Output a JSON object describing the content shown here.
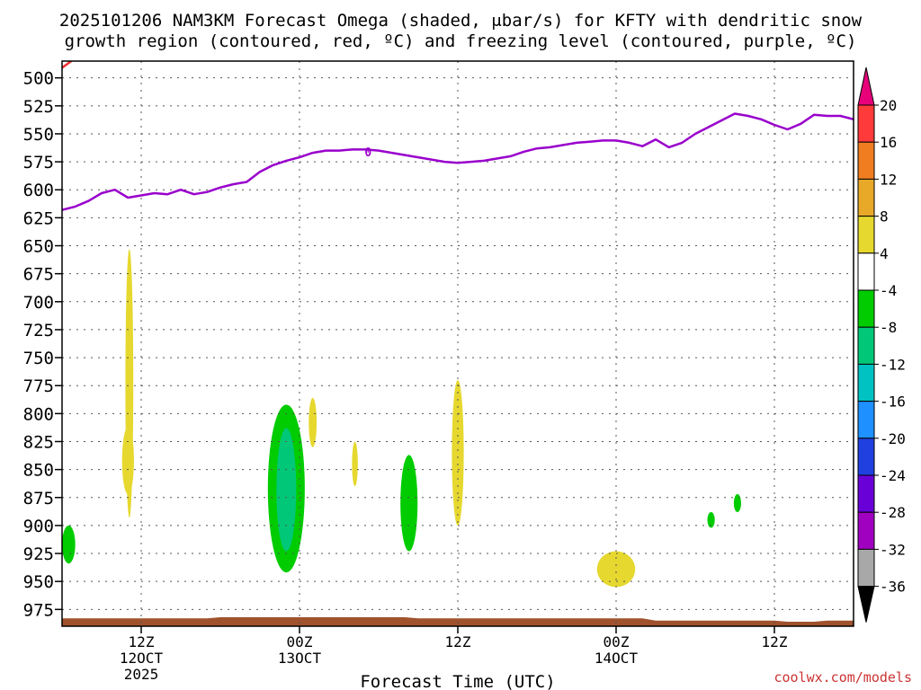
{
  "chart_data": {
    "type": "heatmap",
    "title_line1": "2025101206 NAM3KM Forecast Omega (shaded, μbar/s) for KFTY with dendritic snow",
    "title_line2": "growth region (contoured, red, ºC) and freezing level (contoured, purple, ºC)",
    "xlabel": "Forecast Time (UTC)",
    "ylabel": "",
    "watermark": "coolwx.com/models",
    "x_unit": "forecast_hours_from_2025101206",
    "xlim": [
      0,
      60
    ],
    "ylim": [
      990,
      485
    ],
    "y_ticks": [
      500,
      525,
      550,
      575,
      600,
      625,
      650,
      675,
      700,
      725,
      750,
      775,
      800,
      825,
      850,
      875,
      900,
      925,
      950,
      975
    ],
    "x_ticks": [
      {
        "x": 6,
        "lines": [
          "12Z",
          "12OCT",
          "2025"
        ]
      },
      {
        "x": 18,
        "lines": [
          "00Z",
          "13OCT"
        ]
      },
      {
        "x": 30,
        "lines": [
          "12Z"
        ]
      },
      {
        "x": 42,
        "lines": [
          "00Z",
          "14OCT"
        ]
      },
      {
        "x": 54,
        "lines": [
          "12Z"
        ]
      }
    ],
    "x_gridlines": [
      6,
      18,
      30,
      42,
      54
    ],
    "grid": true,
    "freezing_level": {
      "color": "#9900cc",
      "label": "0",
      "label_at": [
        23.2,
        566
      ],
      "points": [
        [
          0,
          618
        ],
        [
          1,
          615
        ],
        [
          2,
          610
        ],
        [
          3,
          603
        ],
        [
          4,
          600
        ],
        [
          5,
          607
        ],
        [
          6,
          605
        ],
        [
          7,
          603
        ],
        [
          8,
          604
        ],
        [
          9,
          600
        ],
        [
          10,
          604
        ],
        [
          11,
          602
        ],
        [
          12,
          598
        ],
        [
          13,
          595
        ],
        [
          14,
          593
        ],
        [
          15,
          584
        ],
        [
          16,
          578
        ],
        [
          17,
          574
        ],
        [
          18,
          571
        ],
        [
          19,
          567
        ],
        [
          20,
          565
        ],
        [
          21,
          565
        ],
        [
          22,
          564
        ],
        [
          23,
          564
        ],
        [
          24,
          565
        ],
        [
          25,
          567
        ],
        [
          26,
          569
        ],
        [
          27,
          571
        ],
        [
          28,
          573
        ],
        [
          29,
          575
        ],
        [
          30,
          576
        ],
        [
          31,
          575
        ],
        [
          32,
          574
        ],
        [
          33,
          572
        ],
        [
          34,
          570
        ],
        [
          35,
          566
        ],
        [
          36,
          563
        ],
        [
          37,
          562
        ],
        [
          38,
          560
        ],
        [
          39,
          558
        ],
        [
          40,
          557
        ],
        [
          41,
          556
        ],
        [
          42,
          556
        ],
        [
          43,
          558
        ],
        [
          44,
          561
        ],
        [
          45,
          555
        ],
        [
          46,
          562
        ],
        [
          47,
          558
        ],
        [
          48,
          550
        ],
        [
          49,
          544
        ],
        [
          50,
          538
        ],
        [
          51,
          532
        ],
        [
          52,
          534
        ],
        [
          53,
          537
        ],
        [
          54,
          542
        ],
        [
          55,
          546
        ],
        [
          56,
          541
        ],
        [
          57,
          533
        ],
        [
          58,
          534
        ],
        [
          59,
          534
        ],
        [
          60,
          537
        ]
      ]
    },
    "dgz_fragment": {
      "color": "#ee3333",
      "points": [
        [
          0,
          491
        ],
        [
          0.7,
          485
        ]
      ]
    },
    "ground": {
      "color": "#a0522d",
      "points": [
        [
          0,
          983
        ],
        [
          11,
          983
        ],
        [
          12,
          982
        ],
        [
          26,
          982
        ],
        [
          27,
          983
        ],
        [
          44,
          983
        ],
        [
          45,
          985
        ],
        [
          54,
          985
        ],
        [
          55,
          986
        ],
        [
          57,
          986
        ],
        [
          58,
          985
        ],
        [
          60,
          985
        ]
      ]
    },
    "omega_regions": [
      {
        "value": 4,
        "center": [
          5.1,
          773
        ],
        "rx": 0.3,
        "ry": 120
      },
      {
        "value": 4,
        "center": [
          5.0,
          842
        ],
        "rx": 0.45,
        "ry": 30
      },
      {
        "value": -8,
        "center": [
          17.0,
          867
        ],
        "rx": 1.4,
        "ry": 75
      },
      {
        "value": -12,
        "center": [
          17.0,
          868
        ],
        "rx": 0.75,
        "ry": 55
      },
      {
        "value": 4,
        "center": [
          19.0,
          808
        ],
        "rx": 0.3,
        "ry": 22
      },
      {
        "value": 4,
        "center": [
          22.2,
          845
        ],
        "rx": 0.22,
        "ry": 20
      },
      {
        "value": -8,
        "center": [
          26.3,
          880
        ],
        "rx": 0.65,
        "ry": 43
      },
      {
        "value": 4,
        "center": [
          30.0,
          835
        ],
        "rx": 0.45,
        "ry": 65
      },
      {
        "value": -8,
        "center": [
          0.5,
          917
        ],
        "rx": 0.5,
        "ry": 17
      },
      {
        "value": 4,
        "center": [
          42.0,
          939
        ],
        "rx": 1.45,
        "ry": 16
      },
      {
        "value": -8,
        "center": [
          49.2,
          895
        ],
        "rx": 0.28,
        "ry": 7
      },
      {
        "value": -8,
        "center": [
          51.2,
          880
        ],
        "rx": 0.28,
        "ry": 8
      }
    ],
    "colorbar": {
      "labels": [
        "20",
        "16",
        "12",
        "8",
        "4",
        "-4",
        "-8",
        "-12",
        "-16",
        "-20",
        "-24",
        "-28",
        "-32",
        "-36"
      ],
      "bins": [
        {
          "lo": 16,
          "hi": 20,
          "color": "#ff3a3a"
        },
        {
          "lo": 12,
          "hi": 16,
          "color": "#f07d20"
        },
        {
          "lo": 8,
          "hi": 12,
          "color": "#e8a828"
        },
        {
          "lo": 4,
          "hi": 8,
          "color": "#e6d82e"
        },
        {
          "lo": -4,
          "hi": 4,
          "color": "#ffffff"
        },
        {
          "lo": -8,
          "hi": -4,
          "color": "#00cc00"
        },
        {
          "lo": -12,
          "hi": -8,
          "color": "#00c878"
        },
        {
          "lo": -16,
          "hi": -12,
          "color": "#00c2c2"
        },
        {
          "lo": -20,
          "hi": -16,
          "color": "#1e90ff"
        },
        {
          "lo": -24,
          "hi": -20,
          "color": "#2040e0"
        },
        {
          "lo": -28,
          "hi": -24,
          "color": "#6a00d8"
        },
        {
          "lo": -32,
          "hi": -28,
          "color": "#a000c0"
        },
        {
          "lo": -36,
          "hi": -32,
          "color": "#a8a8a8"
        }
      ],
      "top_arrow_color": "#e8007a",
      "bottom_arrow_color": "#000000"
    }
  }
}
